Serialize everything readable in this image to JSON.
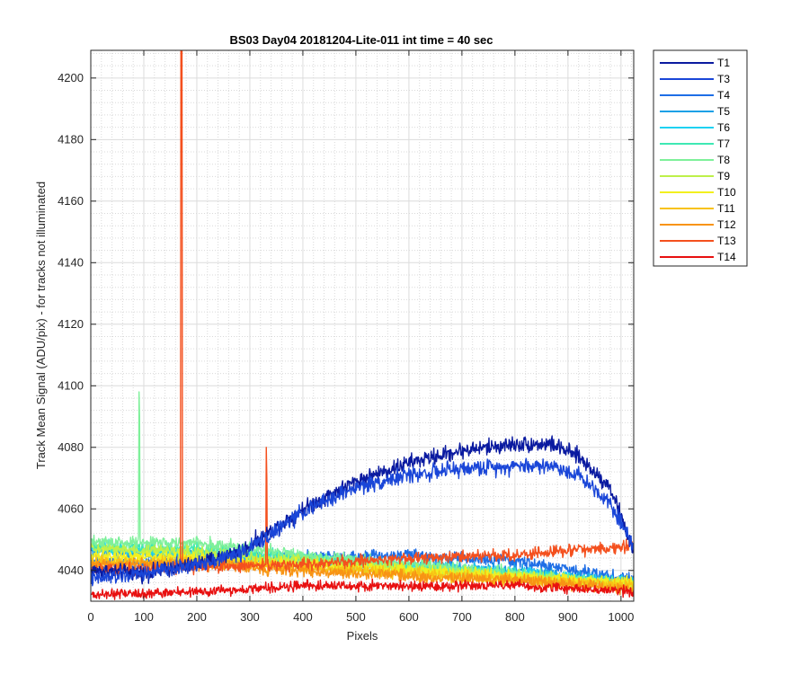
{
  "chart_data": {
    "type": "line",
    "title": "BS03 Day04 20181204-Lite-011 int time = 40 sec",
    "xlabel": "Pixels",
    "ylabel": "Track Mean Signal (ADU/pix) - for tracks not illuminated",
    "xlim": [
      0,
      1024
    ],
    "ylim": [
      4030,
      4209
    ],
    "x_ticks": [
      0,
      100,
      200,
      300,
      400,
      500,
      600,
      700,
      800,
      900,
      1000
    ],
    "x_tick_labels": [
      "0",
      "100",
      "200",
      "300",
      "400",
      "500",
      "600",
      "700",
      "800",
      "900",
      "1000"
    ],
    "y_ticks": [
      4040,
      4060,
      4080,
      4100,
      4120,
      4140,
      4160,
      4180,
      4200
    ],
    "y_tick_labels": [
      "4040",
      "4060",
      "4080",
      "4100",
      "4120",
      "4140",
      "4160",
      "4180",
      "4200"
    ],
    "grid": true,
    "minor_grid": true,
    "legend_position": "outside-right-top",
    "series": [
      {
        "name": "T1",
        "color": "#0a1aa0",
        "noise": 1.6,
        "points": [
          [
            0,
            4040
          ],
          [
            100,
            4039
          ],
          [
            200,
            4042
          ],
          [
            290,
            4047
          ],
          [
            350,
            4054
          ],
          [
            400,
            4060
          ],
          [
            500,
            4069
          ],
          [
            600,
            4075
          ],
          [
            700,
            4079
          ],
          [
            800,
            4081
          ],
          [
            870,
            4081
          ],
          [
            920,
            4077
          ],
          [
            980,
            4067
          ],
          [
            1024,
            4046
          ]
        ],
        "spikes": []
      },
      {
        "name": "T3",
        "color": "#1a46d8",
        "noise": 1.6,
        "points": [
          [
            0,
            4037
          ],
          [
            100,
            4039
          ],
          [
            200,
            4042
          ],
          [
            290,
            4046
          ],
          [
            350,
            4053
          ],
          [
            400,
            4059
          ],
          [
            500,
            4067
          ],
          [
            600,
            4071
          ],
          [
            700,
            4073
          ],
          [
            800,
            4074
          ],
          [
            870,
            4074
          ],
          [
            920,
            4071
          ],
          [
            980,
            4062
          ],
          [
            1024,
            4048
          ]
        ],
        "spikes": []
      },
      {
        "name": "T4",
        "color": "#1e6ee6",
        "noise": 1.3,
        "points": [
          [
            0,
            4042
          ],
          [
            200,
            4043
          ],
          [
            400,
            4044
          ],
          [
            600,
            4045
          ],
          [
            800,
            4043
          ],
          [
            1024,
            4037
          ]
        ],
        "spikes": []
      },
      {
        "name": "T5",
        "color": "#1aa0e6",
        "noise": 1.2,
        "points": [
          [
            0,
            4046
          ],
          [
            200,
            4045
          ],
          [
            400,
            4043
          ],
          [
            600,
            4042
          ],
          [
            800,
            4040
          ],
          [
            1024,
            4036
          ]
        ],
        "spikes": []
      },
      {
        "name": "T6",
        "color": "#1ed2f2",
        "noise": 1.2,
        "points": [
          [
            0,
            4047
          ],
          [
            200,
            4046
          ],
          [
            400,
            4044
          ],
          [
            600,
            4041
          ],
          [
            800,
            4039
          ],
          [
            1024,
            4036
          ]
        ],
        "spikes": []
      },
      {
        "name": "T7",
        "color": "#3ee8b4",
        "noise": 1.2,
        "points": [
          [
            0,
            4048
          ],
          [
            200,
            4047
          ],
          [
            400,
            4044
          ],
          [
            600,
            4041
          ],
          [
            800,
            4039
          ],
          [
            1024,
            4035
          ]
        ],
        "spikes": []
      },
      {
        "name": "T8",
        "color": "#7ef09a",
        "noise": 1.3,
        "points": [
          [
            0,
            4049
          ],
          [
            200,
            4049
          ],
          [
            400,
            4045
          ],
          [
            600,
            4042
          ],
          [
            800,
            4039
          ],
          [
            1024,
            4035
          ]
        ],
        "spikes": [
          [
            91,
            4098
          ],
          [
            92,
            4090
          ]
        ]
      },
      {
        "name": "T9",
        "color": "#bef04a",
        "noise": 1.2,
        "points": [
          [
            0,
            4047
          ],
          [
            200,
            4046
          ],
          [
            400,
            4043
          ],
          [
            600,
            4040
          ],
          [
            800,
            4038
          ],
          [
            1024,
            4035
          ]
        ],
        "spikes": []
      },
      {
        "name": "T10",
        "color": "#f2f01e",
        "noise": 1.2,
        "points": [
          [
            0,
            4045
          ],
          [
            200,
            4044
          ],
          [
            400,
            4042
          ],
          [
            600,
            4040
          ],
          [
            800,
            4038
          ],
          [
            1024,
            4036
          ]
        ],
        "spikes": []
      },
      {
        "name": "T11",
        "color": "#f8c214",
        "noise": 1.2,
        "points": [
          [
            0,
            4043
          ],
          [
            200,
            4043
          ],
          [
            400,
            4041
          ],
          [
            600,
            4039
          ],
          [
            800,
            4037
          ],
          [
            1024,
            4035
          ]
        ],
        "spikes": []
      },
      {
        "name": "T12",
        "color": "#f89414",
        "noise": 1.2,
        "points": [
          [
            0,
            4042
          ],
          [
            200,
            4042
          ],
          [
            400,
            4040
          ],
          [
            600,
            4038
          ],
          [
            800,
            4037
          ],
          [
            1024,
            4034
          ]
        ],
        "spikes": []
      },
      {
        "name": "T13",
        "color": "#f4501e",
        "noise": 1.2,
        "points": [
          [
            0,
            4040
          ],
          [
            200,
            4041
          ],
          [
            400,
            4042
          ],
          [
            600,
            4044
          ],
          [
            800,
            4045
          ],
          [
            1024,
            4048
          ]
        ],
        "spikes": [
          [
            170,
            4209
          ],
          [
            171,
            4209
          ],
          [
            172,
            4209
          ],
          [
            331,
            4080
          ],
          [
            332,
            4070
          ]
        ]
      },
      {
        "name": "T14",
        "color": "#e81010",
        "noise": 1.0,
        "points": [
          [
            0,
            4032
          ],
          [
            200,
            4033
          ],
          [
            400,
            4035
          ],
          [
            600,
            4035
          ],
          [
            800,
            4035
          ],
          [
            1024,
            4033
          ]
        ],
        "spikes": []
      }
    ]
  }
}
